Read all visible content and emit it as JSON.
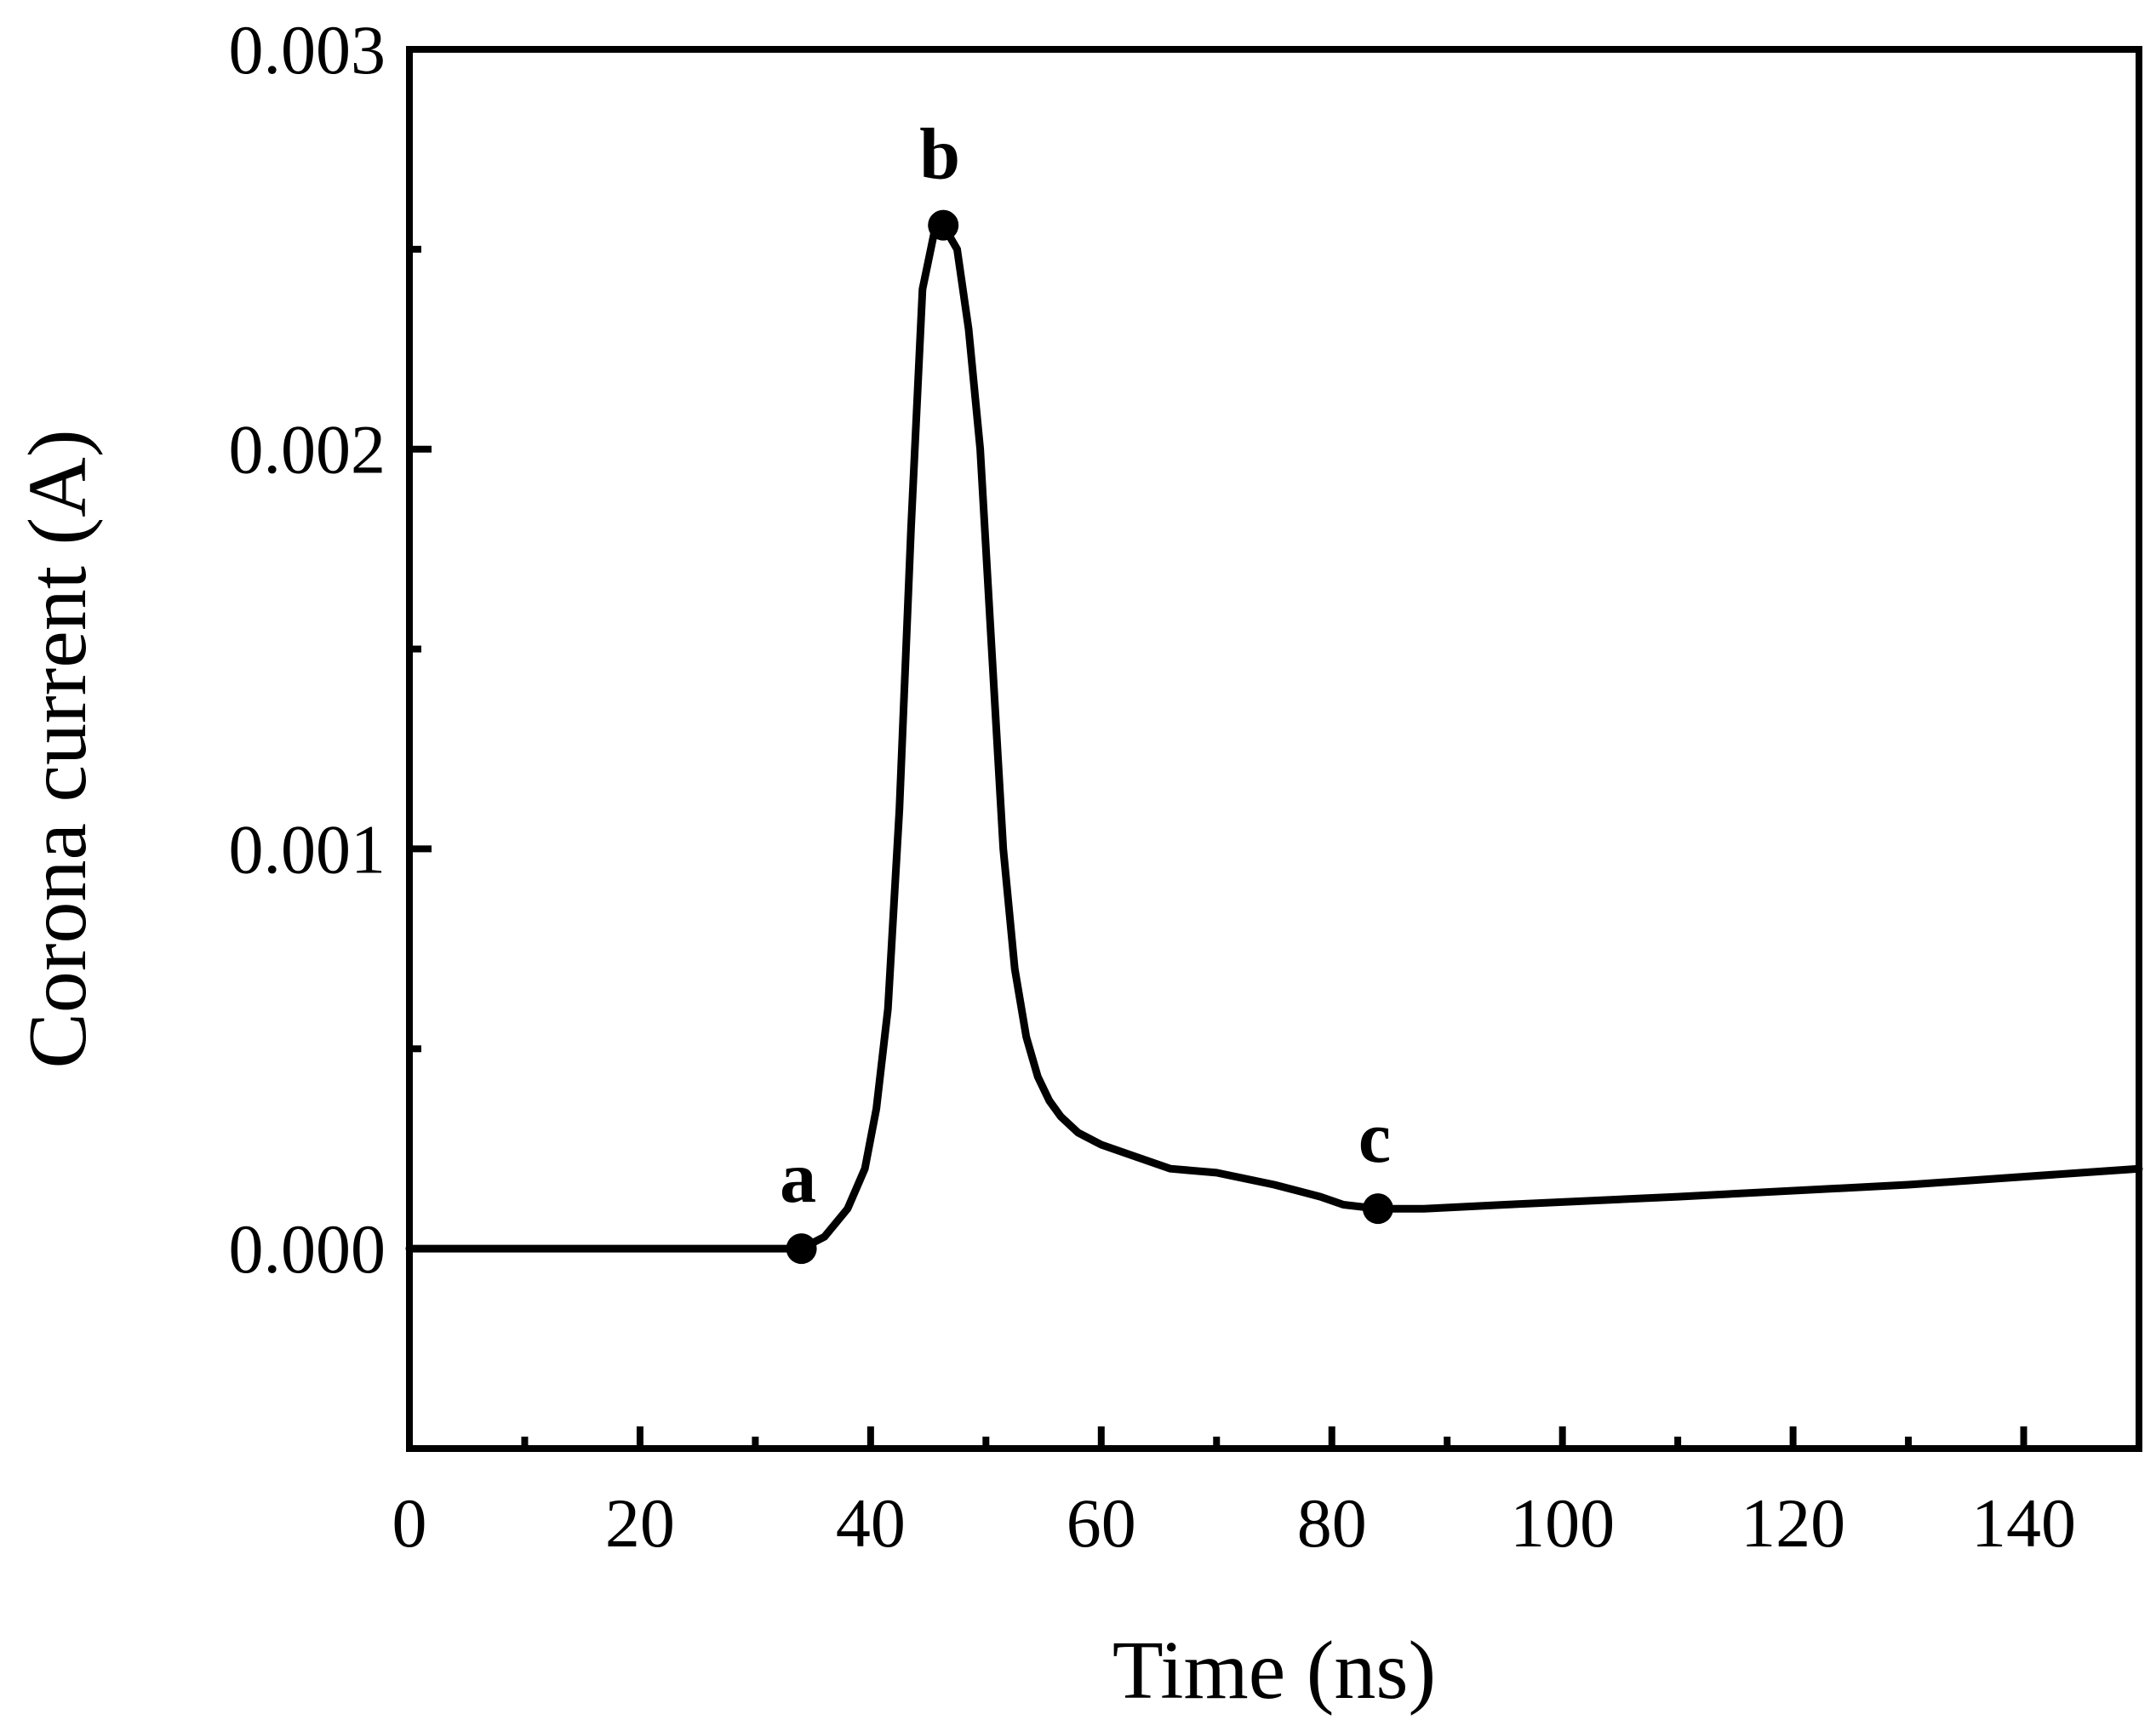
{
  "chart_data": {
    "type": "line",
    "title": "",
    "xlabel": "Time (ns)",
    "ylabel": "Corona current (A)",
    "xlim": [
      0,
      150
    ],
    "ylim": [
      -0.0005,
      0.003
    ],
    "x_ticks_major": [
      0,
      20,
      40,
      60,
      80,
      100,
      120,
      140
    ],
    "x_tick_labels": [
      "0",
      "20",
      "40",
      "60",
      "80",
      "100",
      "120",
      "140"
    ],
    "x_ticks_minor": [
      10,
      30,
      50,
      70,
      90,
      110,
      130
    ],
    "y_ticks_major": [
      0.0,
      0.001,
      0.002,
      0.003
    ],
    "y_tick_labels": [
      "0.000",
      "0.001",
      "0.002",
      "0.003"
    ],
    "y_ticks_minor": [
      0.0005,
      0.0015,
      0.0025
    ],
    "grid": false,
    "series": [
      {
        "name": "Corona current",
        "color": "#000000",
        "x": [
          0,
          30,
          34,
          36,
          38,
          39.5,
          40.5,
          41.5,
          42.5,
          43.5,
          44.5,
          45.5,
          46.3,
          47.5,
          48.5,
          49.5,
          50.5,
          51.5,
          52.5,
          53.5,
          54.5,
          55.5,
          56.5,
          58,
          60,
          63,
          66,
          70,
          75,
          79,
          81,
          84,
          88,
          95,
          110,
          130,
          150
        ],
        "y": [
          0.0,
          0.0,
          0.0,
          3e-05,
          0.0001,
          0.0002,
          0.00035,
          0.0006,
          0.0011,
          0.0018,
          0.0024,
          0.00254,
          0.00256,
          0.0025,
          0.0023,
          0.002,
          0.0015,
          0.001,
          0.0007,
          0.00053,
          0.00043,
          0.00037,
          0.00033,
          0.00029,
          0.00026,
          0.00023,
          0.0002,
          0.00019,
          0.00016,
          0.00013,
          0.00011,
          0.0001,
          0.0001,
          0.00011,
          0.00013,
          0.00016,
          0.0002
        ]
      }
    ],
    "annotations": [
      {
        "label": "a",
        "x": 34,
        "y": 0.0
      },
      {
        "label": "b",
        "x": 46.3,
        "y": 0.00256
      },
      {
        "label": "c",
        "x": 84,
        "y": 0.0001
      }
    ]
  }
}
